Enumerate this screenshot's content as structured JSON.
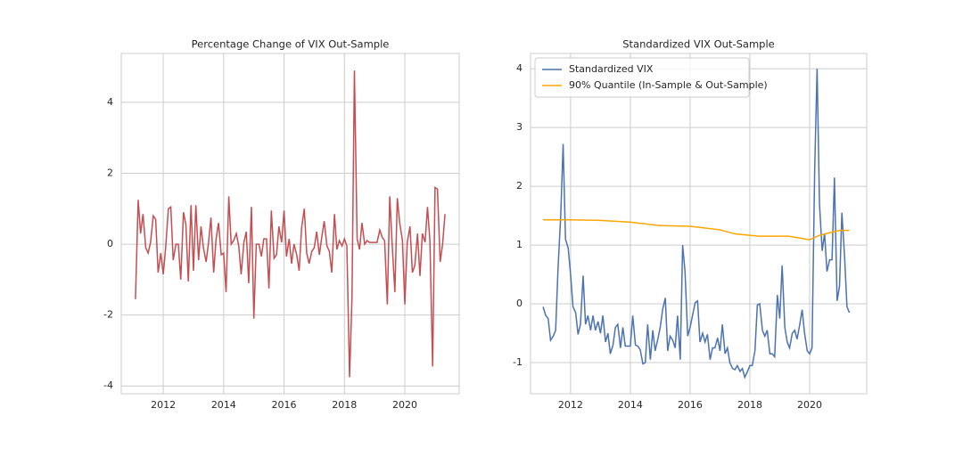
{
  "chart_data": [
    {
      "type": "line",
      "title": "Percentage Change of VIX Out-Sample",
      "x": [
        2011.08,
        2011.17,
        2011.25,
        2011.33,
        2011.42,
        2011.5,
        2011.58,
        2011.67,
        2011.75,
        2011.83,
        2011.92,
        2012.0,
        2012.08,
        2012.17,
        2012.25,
        2012.33,
        2012.42,
        2012.5,
        2012.58,
        2012.67,
        2012.75,
        2012.83,
        2012.92,
        2013.0,
        2013.08,
        2013.17,
        2013.25,
        2013.33,
        2013.42,
        2013.5,
        2013.58,
        2013.67,
        2013.75,
        2013.83,
        2013.92,
        2014.0,
        2014.08,
        2014.17,
        2014.25,
        2014.33,
        2014.42,
        2014.5,
        2014.58,
        2014.67,
        2014.75,
        2014.83,
        2014.92,
        2015.0,
        2015.08,
        2015.17,
        2015.25,
        2015.33,
        2015.42,
        2015.5,
        2015.58,
        2015.67,
        2015.75,
        2015.83,
        2015.92,
        2016.0,
        2016.08,
        2016.17,
        2016.25,
        2016.33,
        2016.42,
        2016.5,
        2016.58,
        2016.67,
        2016.75,
        2016.83,
        2016.92,
        2017.0,
        2017.08,
        2017.17,
        2017.25,
        2017.33,
        2017.42,
        2017.5,
        2017.58,
        2017.67,
        2017.75,
        2017.83,
        2017.92,
        2018.0,
        2018.08,
        2018.17,
        2018.25,
        2018.33,
        2018.42,
        2018.5,
        2018.58,
        2018.67,
        2018.75,
        2018.83,
        2018.92,
        2019.0,
        2019.08,
        2019.17,
        2019.25,
        2019.33,
        2019.42,
        2019.5,
        2019.58,
        2019.67,
        2019.75,
        2019.83,
        2019.92,
        2020.0,
        2020.08,
        2020.17,
        2020.25,
        2020.33,
        2020.42,
        2020.5,
        2020.58,
        2020.67,
        2020.75,
        2020.83,
        2020.92,
        2021.0,
        2021.08,
        2021.17,
        2021.25,
        2021.33
      ],
      "series": [
        {
          "color": "#c44e52",
          "values": [
            -1.55,
            1.25,
            0.3,
            0.85,
            -0.1,
            -0.25,
            0.05,
            0.8,
            0.7,
            -0.8,
            -0.25,
            -0.85,
            -0.1,
            1.0,
            1.05,
            -0.45,
            0.0,
            0.0,
            -1.0,
            0.9,
            0.55,
            -1.05,
            1.1,
            -0.75,
            1.1,
            -0.45,
            0.5,
            -0.1,
            -0.5,
            0.05,
            0.75,
            -0.8,
            0.15,
            0.6,
            -0.3,
            -0.25,
            -1.35,
            1.35,
            0.0,
            0.1,
            0.3,
            -0.05,
            -0.85,
            0.05,
            0.35,
            -1.1,
            1.05,
            -2.1,
            0.0,
            0.0,
            -0.35,
            0.15,
            0.15,
            -1.25,
            0.95,
            -0.4,
            -0.3,
            0.5,
            0.05,
            0.95,
            -0.35,
            0.15,
            -0.55,
            0.0,
            -0.3,
            -0.75,
            0.45,
            1.0,
            -0.25,
            -0.55,
            -0.2,
            -0.1,
            0.35,
            -0.3,
            0.2,
            0.65,
            -0.05,
            -0.2,
            -0.8,
            0.85,
            -0.15,
            0.1,
            -0.05,
            0.15,
            -0.05,
            -3.75,
            -1.5,
            4.9,
            0.15,
            -0.15,
            0.6,
            0.0,
            0.1,
            0.05,
            0.05,
            0.05,
            0.05,
            0.4,
            0.2,
            0.1,
            -1.7,
            1.35,
            0.0,
            -1.35,
            1.3,
            0.6,
            0.1,
            -1.7,
            0.05,
            0.5,
            -0.8,
            -0.6,
            0.3,
            -0.9,
            0.3,
            0.05,
            1.05,
            0.1,
            -3.45,
            1.6,
            1.55,
            -0.5,
            0.0,
            0.85
          ]
        }
      ],
      "xlim": [
        2010.61,
        2021.8
      ],
      "ylim": [
        -4.22,
        5.38
      ],
      "xticks": [
        2012,
        2014,
        2016,
        2018,
        2020
      ],
      "yticks": [
        -4,
        -2,
        0,
        2,
        4
      ],
      "grid": true
    },
    {
      "type": "line",
      "title": "Standardized VIX Out-Sample",
      "x": [
        2011.08,
        2011.17,
        2011.25,
        2011.33,
        2011.42,
        2011.5,
        2011.58,
        2011.67,
        2011.75,
        2011.83,
        2011.92,
        2012.0,
        2012.08,
        2012.17,
        2012.25,
        2012.33,
        2012.42,
        2012.5,
        2012.58,
        2012.67,
        2012.75,
        2012.83,
        2012.92,
        2013.0,
        2013.08,
        2013.17,
        2013.25,
        2013.33,
        2013.42,
        2013.5,
        2013.58,
        2013.67,
        2013.75,
        2013.83,
        2013.92,
        2014.0,
        2014.08,
        2014.17,
        2014.25,
        2014.33,
        2014.42,
        2014.5,
        2014.58,
        2014.67,
        2014.75,
        2014.83,
        2014.92,
        2015.0,
        2015.08,
        2015.17,
        2015.25,
        2015.33,
        2015.42,
        2015.5,
        2015.58,
        2015.67,
        2015.75,
        2015.83,
        2015.92,
        2016.0,
        2016.08,
        2016.17,
        2016.25,
        2016.33,
        2016.42,
        2016.5,
        2016.58,
        2016.67,
        2016.75,
        2016.83,
        2016.92,
        2017.0,
        2017.08,
        2017.17,
        2017.25,
        2017.33,
        2017.42,
        2017.5,
        2017.58,
        2017.67,
        2017.75,
        2017.83,
        2017.92,
        2018.0,
        2018.08,
        2018.17,
        2018.25,
        2018.33,
        2018.42,
        2018.5,
        2018.58,
        2018.67,
        2018.75,
        2018.83,
        2018.92,
        2019.0,
        2019.08,
        2019.17,
        2019.25,
        2019.33,
        2019.42,
        2019.5,
        2019.58,
        2019.67,
        2019.75,
        2019.83,
        2019.92,
        2020.0,
        2020.08,
        2020.17,
        2020.25,
        2020.33,
        2020.42,
        2020.5,
        2020.58,
        2020.67,
        2020.75,
        2020.83,
        2020.92,
        2021.0,
        2021.08,
        2021.17,
        2021.25,
        2021.33
      ],
      "series": [
        {
          "name": "Standardized VIX",
          "color": "#4c72b0",
          "values": [
            -0.05,
            -0.2,
            -0.25,
            -0.62,
            -0.55,
            -0.45,
            0.6,
            1.5,
            2.72,
            1.1,
            0.95,
            0.5,
            -0.05,
            -0.15,
            -0.52,
            -0.35,
            0.48,
            -0.35,
            -0.2,
            -0.45,
            -0.2,
            -0.45,
            -0.3,
            -0.5,
            -0.2,
            -0.65,
            -0.5,
            -0.85,
            -0.7,
            -0.4,
            -0.35,
            -0.75,
            -0.4,
            -0.72,
            -0.72,
            -0.72,
            -0.2,
            -0.7,
            -0.72,
            -0.78,
            -1.02,
            -1.0,
            -0.35,
            -0.95,
            -0.45,
            -0.8,
            -0.6,
            -0.4,
            -0.1,
            0.1,
            -0.8,
            -0.55,
            -0.62,
            -0.75,
            -0.2,
            -0.95,
            1.0,
            0.55,
            -0.55,
            -0.4,
            -0.2,
            0.02,
            0.05,
            -0.65,
            -0.5,
            -0.65,
            -0.52,
            -0.95,
            -0.75,
            -0.75,
            -0.58,
            -0.8,
            -0.35,
            -0.85,
            -0.75,
            -1.0,
            -1.1,
            -1.12,
            -1.05,
            -1.15,
            -1.1,
            -1.25,
            -1.15,
            -1.05,
            -1.05,
            -0.8,
            -0.02,
            0.0,
            -0.45,
            -0.55,
            -0.45,
            -0.85,
            -0.85,
            -0.9,
            0.15,
            -0.25,
            0.65,
            -0.4,
            -0.65,
            -0.75,
            -0.5,
            -0.45,
            -0.6,
            -0.35,
            -0.1,
            -0.5,
            -0.8,
            -0.85,
            -0.75,
            2.3,
            4.0,
            1.7,
            0.9,
            1.2,
            0.55,
            0.75,
            0.75,
            2.15,
            0.05,
            0.3,
            1.55,
            0.8,
            -0.05,
            -0.15
          ]
        },
        {
          "name": "90% Quantile (In-Sample & Out-Sample)",
          "color": "#ffa500",
          "x": [
            2011.08,
            2012.0,
            2013.0,
            2014.0,
            2015.0,
            2016.0,
            2017.0,
            2017.5,
            2018.3,
            2019.3,
            2020.0,
            2020.3,
            2020.6,
            2021.0,
            2021.33
          ],
          "values": [
            1.43,
            1.43,
            1.42,
            1.39,
            1.33,
            1.32,
            1.26,
            1.19,
            1.15,
            1.15,
            1.09,
            1.16,
            1.2,
            1.25,
            1.25
          ]
        }
      ],
      "xlim": [
        2010.66,
        2021.91
      ],
      "ylim": [
        -1.53,
        4.26
      ],
      "xticks": [
        2012,
        2014,
        2016,
        2018,
        2020
      ],
      "yticks": [
        -1,
        0,
        1,
        2,
        3,
        4
      ],
      "grid": true,
      "legend": "upper left"
    }
  ]
}
